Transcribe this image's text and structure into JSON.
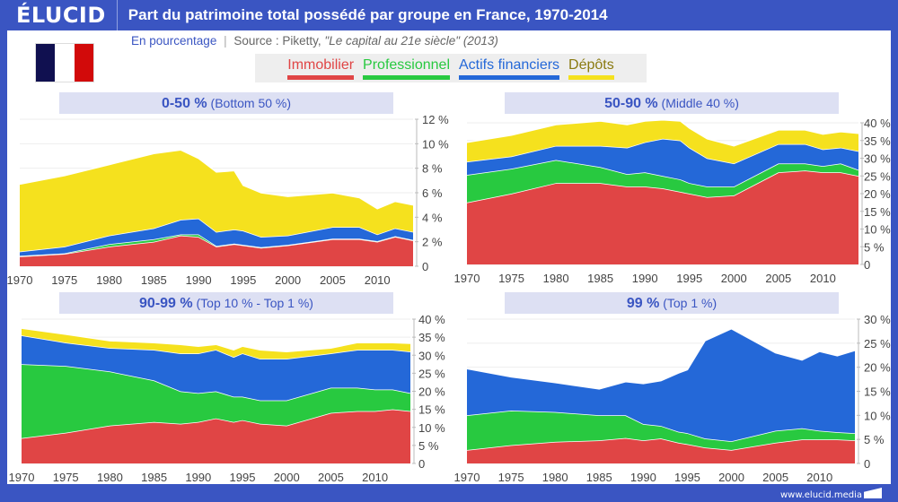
{
  "header": {
    "logo": "ÉLUCID",
    "title": "Part du patrimoine total possédé par groupe en France, 1970-2014"
  },
  "subtitle": {
    "unit": "En pourcentage",
    "separator": "|",
    "source_prefix": "Source : Piketty, ",
    "source_title": "\"Le capital au 21e siècle\"",
    "source_year": " (2013)"
  },
  "legend": [
    {
      "label": "Immobilier",
      "color": "#e04545"
    },
    {
      "label": "Professionnel",
      "color": "#28c940"
    },
    {
      "label": "Actifs financiers",
      "color": "#2468d8"
    },
    {
      "label": "Dépôts",
      "color": "#f5e11e"
    }
  ],
  "footer": "www.elucid.media",
  "chart_data": [
    {
      "type": "area",
      "stacked": true,
      "title_bold": "0-50 %",
      "title_rest": " (Bottom 50 %)",
      "ylim": [
        0,
        12
      ],
      "yticks": [
        "0",
        "2 %",
        "4 %",
        "6 %",
        "8 %",
        "10 %",
        "12 %"
      ],
      "ytick_values": [
        0,
        2,
        4,
        6,
        8,
        10,
        12
      ],
      "xticks": [
        "1970",
        "1975",
        "1980",
        "1985",
        "1990",
        "1995",
        "2000",
        "2005",
        "2010"
      ],
      "x": [
        1970,
        1975,
        1980,
        1985,
        1988,
        1990,
        1992,
        1994,
        1995,
        1997,
        2000,
        2005,
        2008,
        2010,
        2012,
        2014
      ],
      "series": [
        {
          "name": "Immobilier",
          "values": [
            0.8,
            1.0,
            1.6,
            2.0,
            2.5,
            2.4,
            1.6,
            1.8,
            1.7,
            1.5,
            1.7,
            2.2,
            2.2,
            2.0,
            2.4,
            2.1
          ]
        },
        {
          "name": "Professionnel",
          "values": [
            0.05,
            0.05,
            0.2,
            0.2,
            0.1,
            0.2,
            0.05,
            0.05,
            0.05,
            0.05,
            0.05,
            0.05,
            0.05,
            0.05,
            0.05,
            0.05
          ]
        },
        {
          "name": "Actifs financiers",
          "values": [
            0.35,
            0.55,
            0.7,
            0.9,
            1.2,
            1.3,
            1.15,
            1.15,
            1.15,
            0.85,
            0.75,
            0.95,
            0.95,
            0.55,
            0.65,
            0.65
          ]
        },
        {
          "name": "Dépôts",
          "values": [
            5.5,
            5.8,
            5.8,
            6.1,
            5.7,
            4.9,
            4.9,
            4.8,
            3.7,
            3.6,
            3.2,
            2.8,
            2.4,
            2.1,
            2.2,
            2.2
          ]
        }
      ]
    },
    {
      "type": "area",
      "stacked": true,
      "title_bold": "50-90 %",
      "title_rest": " (Middle 40 %)",
      "ylim": [
        0,
        40
      ],
      "yticks": [
        "0",
        "5 %",
        "10 %",
        "15 %",
        "20 %",
        "25 %",
        "30 %",
        "35 %",
        "40 %"
      ],
      "ytick_values": [
        0,
        5,
        10,
        15,
        20,
        25,
        30,
        35,
        40
      ],
      "xticks": [
        "1970",
        "1975",
        "1980",
        "1985",
        "1990",
        "1995",
        "2000",
        "2005",
        "2010"
      ],
      "x": [
        1970,
        1975,
        1980,
        1985,
        1988,
        1990,
        1992,
        1994,
        1995,
        1997,
        2000,
        2005,
        2008,
        2010,
        2012,
        2014
      ],
      "series": [
        {
          "name": "Immobilier",
          "values": [
            17.5,
            20,
            23,
            23,
            22,
            22,
            21.5,
            20.5,
            20,
            19,
            19.5,
            26,
            26.5,
            26,
            26,
            25
          ]
        },
        {
          "name": "Professionnel",
          "values": [
            7.8,
            7,
            6.5,
            4.5,
            3.5,
            4,
            3.5,
            3.5,
            3,
            3,
            2.5,
            2.5,
            2,
            1.8,
            2.5,
            1.7
          ]
        },
        {
          "name": "Actifs financiers",
          "values": [
            3.7,
            3.5,
            4,
            6,
            7.5,
            8.5,
            10.5,
            11,
            10,
            8,
            6.5,
            5.5,
            5.5,
            4.7,
            4.5,
            5.3
          ]
        },
        {
          "name": "Dépôts",
          "values": [
            5.5,
            6,
            6,
            7,
            6.5,
            6,
            5.3,
            5.5,
            5.5,
            5.5,
            5,
            4,
            4,
            4.3,
            4.5,
            5
          ]
        }
      ]
    },
    {
      "type": "area",
      "stacked": true,
      "title_bold": "90-99 %",
      "title_rest": " (Top 10 % - Top 1 %)",
      "ylim": [
        0,
        40
      ],
      "yticks": [
        "0",
        "5 %",
        "10 %",
        "15 %",
        "20 %",
        "25 %",
        "30 %",
        "35 %",
        "40 %"
      ],
      "ytick_values": [
        0,
        5,
        10,
        15,
        20,
        25,
        30,
        35,
        40
      ],
      "xticks": [
        "1970",
        "1975",
        "1980",
        "1985",
        "1990",
        "1995",
        "2000",
        "2005",
        "2010"
      ],
      "x": [
        1970,
        1975,
        1980,
        1985,
        1988,
        1990,
        1992,
        1994,
        1995,
        1997,
        2000,
        2005,
        2008,
        2010,
        2012,
        2014
      ],
      "series": [
        {
          "name": "Immobilier",
          "values": [
            7,
            8.5,
            10.5,
            11.5,
            11,
            11.5,
            12.5,
            11.5,
            12,
            11,
            10.5,
            14,
            14.5,
            14.5,
            15,
            14.5
          ]
        },
        {
          "name": "Professionnel",
          "values": [
            20.5,
            18.5,
            15,
            11.5,
            9,
            8,
            7.5,
            7,
            6.5,
            6.5,
            7,
            7,
            6.5,
            6,
            5.5,
            5
          ]
        },
        {
          "name": "Actifs financiers",
          "values": [
            8,
            6.5,
            6.5,
            8.5,
            10.5,
            11,
            11.5,
            11,
            12,
            11.5,
            11.5,
            9.5,
            10.5,
            11,
            11,
            11.5
          ]
        },
        {
          "name": "Dépôts",
          "values": [
            2,
            2.3,
            2,
            2,
            2.5,
            2,
            1.5,
            2,
            2,
            2.5,
            2,
            1.5,
            2,
            2,
            2,
            2.3
          ]
        }
      ]
    },
    {
      "type": "area",
      "stacked": true,
      "title_bold": "99 %",
      "title_rest": " (Top 1 %)",
      "ylim": [
        0,
        30
      ],
      "yticks": [
        "0",
        "5 %",
        "10 %",
        "15 %",
        "20 %",
        "25 %",
        "30 %"
      ],
      "ytick_values": [
        0,
        5,
        10,
        15,
        20,
        25,
        30
      ],
      "xticks": [
        "1970",
        "1975",
        "1980",
        "1985",
        "1990",
        "1995",
        "2000",
        "2005",
        "2010"
      ],
      "x": [
        1970,
        1975,
        1980,
        1985,
        1988,
        1990,
        1992,
        1994,
        1995,
        1997,
        2000,
        2005,
        2008,
        2010,
        2012,
        2014
      ],
      "series": [
        {
          "name": "Immobilier",
          "values": [
            2.8,
            3.8,
            4.5,
            4.8,
            5.3,
            4.8,
            5.2,
            4.3,
            4,
            3.3,
            2.8,
            4.3,
            5,
            5,
            5,
            4.8
          ]
        },
        {
          "name": "Professionnel",
          "values": [
            7.2,
            7.2,
            6.2,
            5.2,
            4.7,
            3.4,
            2.6,
            2.3,
            2.3,
            1.9,
            1.8,
            2.5,
            2.3,
            1.8,
            1.5,
            1.5
          ]
        },
        {
          "name": "Actifs financiers",
          "values": [
            9.7,
            7,
            6.1,
            5.5,
            7,
            8.4,
            9.4,
            12.2,
            13.2,
            20.3,
            23.4,
            16.2,
            14.2,
            16.5,
            15.9,
            17.2
          ]
        },
        {
          "name": "Dépôts",
          "values": [
            0,
            0,
            0,
            0,
            0,
            0,
            0,
            0,
            0,
            0,
            0,
            0,
            0,
            0,
            0,
            0
          ]
        }
      ]
    }
  ]
}
